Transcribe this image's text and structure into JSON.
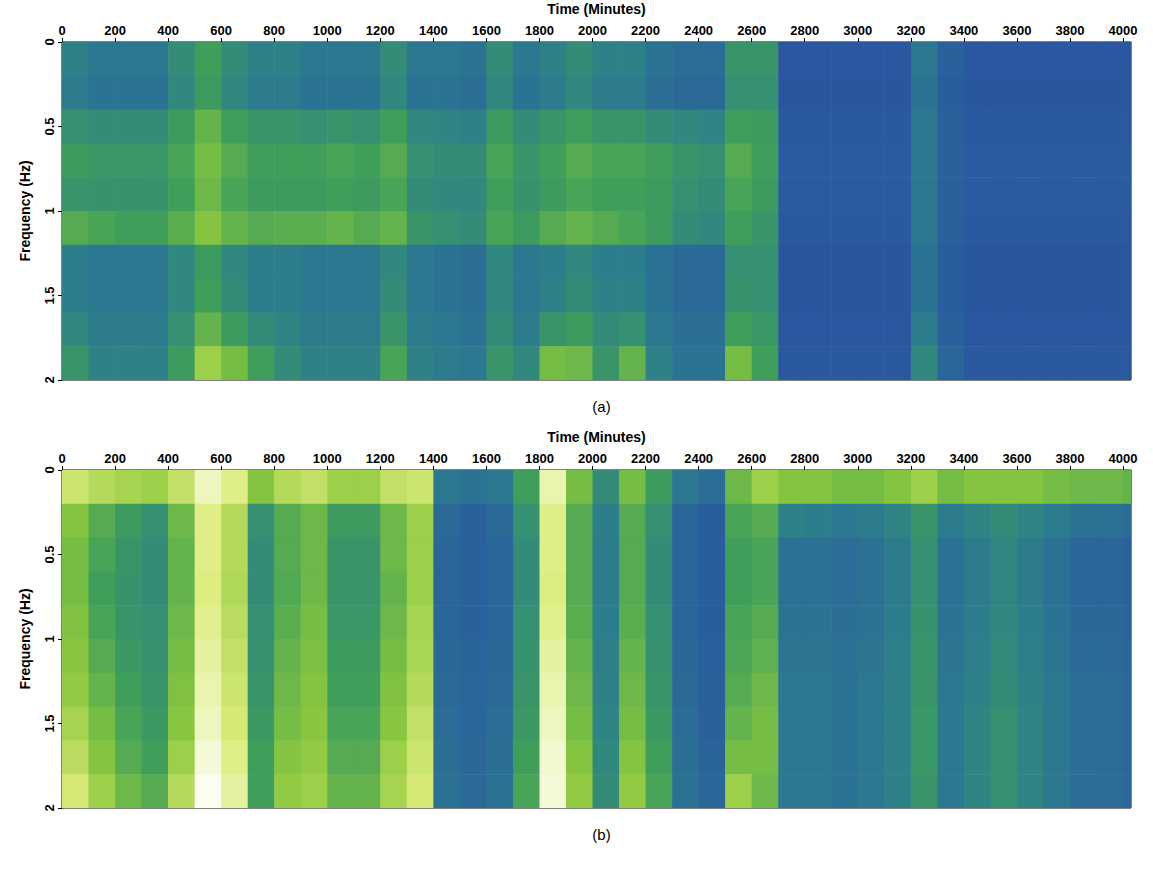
{
  "chart_data": [
    {
      "type": "heatmap",
      "title": "(a)",
      "x_label": "Time (Minutes)",
      "y_label": "Frequency (Hz)",
      "xlim": [
        0,
        4030
      ],
      "ylim": [
        2,
        0
      ],
      "xticks": [
        0,
        200,
        400,
        600,
        800,
        1000,
        1200,
        1400,
        1600,
        1800,
        2000,
        2200,
        2400,
        2600,
        2800,
        3000,
        3200,
        3400,
        3600,
        3800,
        4000
      ],
      "yticks": [
        0,
        0.5,
        1,
        1.5,
        2
      ],
      "colormap": [
        "#2a3f96",
        "#2a5aa0",
        "#2c7f8c",
        "#3f9f5a",
        "#8cc83e",
        "#dcec7a",
        "#ffffff"
      ],
      "color_range": [
        0,
        1
      ],
      "time_bins": [
        0,
        100,
        200,
        300,
        400,
        500,
        600,
        700,
        800,
        900,
        1000,
        1100,
        1200,
        1300,
        1400,
        1500,
        1600,
        1700,
        1800,
        1900,
        2000,
        2100,
        2200,
        2300,
        2400,
        2500,
        2600,
        2700,
        2800,
        2900,
        3000,
        3100,
        3200,
        3300,
        3400,
        3500,
        3600,
        3700,
        3800,
        3900,
        4000,
        4030
      ],
      "frequency_bins": [
        0,
        0.2,
        0.4,
        0.6,
        0.8,
        1,
        1.2,
        1.4,
        1.6,
        1.8,
        2
      ],
      "cells": [
        [
          0.35,
          0.3,
          0.3,
          0.3,
          0.4,
          0.5,
          0.4,
          0.35,
          0.35,
          0.3,
          0.3,
          0.3,
          0.4,
          0.3,
          0.3,
          0.28,
          0.4,
          0.3,
          0.35,
          0.4,
          0.35,
          0.35,
          0.28,
          0.25,
          0.25,
          0.45,
          0.45,
          0.15,
          0.15,
          0.15,
          0.15,
          0.15,
          0.3,
          0.2,
          0.15,
          0.15,
          0.15,
          0.15,
          0.15,
          0.15,
          0.15
        ],
        [
          0.32,
          0.28,
          0.28,
          0.28,
          0.38,
          0.48,
          0.38,
          0.32,
          0.32,
          0.28,
          0.28,
          0.28,
          0.38,
          0.28,
          0.28,
          0.26,
          0.38,
          0.28,
          0.32,
          0.38,
          0.32,
          0.32,
          0.26,
          0.24,
          0.24,
          0.42,
          0.42,
          0.14,
          0.14,
          0.14,
          0.14,
          0.14,
          0.28,
          0.18,
          0.14,
          0.14,
          0.14,
          0.14,
          0.14,
          0.14,
          0.14
        ],
        [
          0.42,
          0.4,
          0.4,
          0.4,
          0.48,
          0.58,
          0.5,
          0.45,
          0.45,
          0.42,
          0.45,
          0.42,
          0.5,
          0.38,
          0.36,
          0.35,
          0.48,
          0.4,
          0.45,
          0.5,
          0.45,
          0.45,
          0.4,
          0.38,
          0.36,
          0.5,
          0.48,
          0.16,
          0.16,
          0.16,
          0.16,
          0.16,
          0.3,
          0.2,
          0.16,
          0.16,
          0.16,
          0.16,
          0.16,
          0.16,
          0.16
        ],
        [
          0.48,
          0.46,
          0.46,
          0.46,
          0.52,
          0.62,
          0.55,
          0.5,
          0.5,
          0.5,
          0.52,
          0.5,
          0.55,
          0.42,
          0.4,
          0.4,
          0.52,
          0.45,
          0.5,
          0.55,
          0.52,
          0.52,
          0.5,
          0.45,
          0.42,
          0.55,
          0.5,
          0.17,
          0.17,
          0.17,
          0.17,
          0.17,
          0.3,
          0.2,
          0.17,
          0.17,
          0.17,
          0.17,
          0.17,
          0.17,
          0.17
        ],
        [
          0.45,
          0.44,
          0.44,
          0.44,
          0.5,
          0.6,
          0.52,
          0.48,
          0.48,
          0.48,
          0.5,
          0.48,
          0.52,
          0.4,
          0.38,
          0.38,
          0.5,
          0.44,
          0.48,
          0.52,
          0.5,
          0.5,
          0.48,
          0.42,
          0.4,
          0.52,
          0.48,
          0.17,
          0.17,
          0.17,
          0.17,
          0.17,
          0.3,
          0.2,
          0.17,
          0.17,
          0.17,
          0.17,
          0.17,
          0.17,
          0.17
        ],
        [
          0.55,
          0.52,
          0.5,
          0.5,
          0.56,
          0.65,
          0.58,
          0.55,
          0.56,
          0.56,
          0.58,
          0.55,
          0.58,
          0.45,
          0.42,
          0.4,
          0.52,
          0.48,
          0.55,
          0.58,
          0.55,
          0.52,
          0.48,
          0.4,
          0.38,
          0.5,
          0.45,
          0.16,
          0.16,
          0.16,
          0.16,
          0.16,
          0.3,
          0.2,
          0.16,
          0.16,
          0.16,
          0.16,
          0.16,
          0.16,
          0.16
        ],
        [
          0.33,
          0.3,
          0.3,
          0.3,
          0.38,
          0.48,
          0.38,
          0.33,
          0.33,
          0.3,
          0.3,
          0.3,
          0.38,
          0.3,
          0.28,
          0.26,
          0.38,
          0.3,
          0.33,
          0.38,
          0.33,
          0.33,
          0.27,
          0.24,
          0.24,
          0.42,
          0.42,
          0.14,
          0.14,
          0.14,
          0.14,
          0.14,
          0.28,
          0.18,
          0.14,
          0.14,
          0.14,
          0.14,
          0.14,
          0.14,
          0.14
        ],
        [
          0.33,
          0.3,
          0.3,
          0.3,
          0.38,
          0.5,
          0.4,
          0.33,
          0.33,
          0.3,
          0.3,
          0.3,
          0.4,
          0.3,
          0.28,
          0.26,
          0.38,
          0.3,
          0.35,
          0.4,
          0.35,
          0.35,
          0.28,
          0.24,
          0.24,
          0.44,
          0.42,
          0.14,
          0.14,
          0.14,
          0.14,
          0.14,
          0.28,
          0.18,
          0.14,
          0.14,
          0.14,
          0.14,
          0.14,
          0.14,
          0.14
        ],
        [
          0.38,
          0.32,
          0.32,
          0.32,
          0.42,
          0.58,
          0.48,
          0.4,
          0.36,
          0.32,
          0.32,
          0.32,
          0.45,
          0.32,
          0.3,
          0.28,
          0.4,
          0.32,
          0.45,
          0.48,
          0.4,
          0.42,
          0.3,
          0.26,
          0.26,
          0.5,
          0.46,
          0.15,
          0.15,
          0.15,
          0.15,
          0.15,
          0.32,
          0.2,
          0.15,
          0.15,
          0.15,
          0.15,
          0.15,
          0.15,
          0.15
        ],
        [
          0.45,
          0.35,
          0.35,
          0.35,
          0.48,
          0.7,
          0.62,
          0.5,
          0.4,
          0.35,
          0.35,
          0.35,
          0.52,
          0.35,
          0.32,
          0.3,
          0.45,
          0.38,
          0.62,
          0.6,
          0.45,
          0.58,
          0.35,
          0.28,
          0.28,
          0.62,
          0.5,
          0.16,
          0.16,
          0.16,
          0.16,
          0.16,
          0.38,
          0.22,
          0.16,
          0.16,
          0.16,
          0.16,
          0.16,
          0.16,
          0.16
        ]
      ]
    },
    {
      "type": "heatmap",
      "title": "(b)",
      "x_label": "Time (Minutes)",
      "y_label": "Frequency (Hz)",
      "xlim": [
        0,
        4030
      ],
      "ylim": [
        2,
        0
      ],
      "xticks": [
        0,
        200,
        400,
        600,
        800,
        1000,
        1200,
        1400,
        1600,
        1800,
        2000,
        2200,
        2400,
        2600,
        2800,
        3000,
        3200,
        3400,
        3600,
        3800,
        4000
      ],
      "yticks": [
        0,
        0.5,
        1,
        1.5,
        2
      ],
      "colormap": [
        "#2a3f96",
        "#2a5aa0",
        "#2c7f8c",
        "#3f9f5a",
        "#8cc83e",
        "#dcec7a",
        "#ffffff"
      ],
      "color_range": [
        0,
        1
      ],
      "time_bins": [
        0,
        100,
        200,
        300,
        400,
        500,
        600,
        700,
        800,
        900,
        1000,
        1100,
        1200,
        1300,
        1400,
        1500,
        1600,
        1700,
        1800,
        1900,
        2000,
        2100,
        2200,
        2300,
        2400,
        2500,
        2600,
        2700,
        2800,
        2900,
        3000,
        3100,
        3200,
        3300,
        3400,
        3500,
        3600,
        3700,
        3800,
        3900,
        4000,
        4030
      ],
      "frequency_bins": [
        0,
        0.2,
        0.4,
        0.6,
        0.8,
        1,
        1.2,
        1.4,
        1.6,
        1.8,
        2
      ],
      "cells": [
        [
          0.8,
          0.75,
          0.72,
          0.7,
          0.78,
          0.92,
          0.85,
          0.65,
          0.75,
          0.78,
          0.7,
          0.7,
          0.78,
          0.8,
          0.3,
          0.28,
          0.3,
          0.5,
          0.9,
          0.62,
          0.4,
          0.62,
          0.48,
          0.3,
          0.25,
          0.6,
          0.7,
          0.65,
          0.65,
          0.62,
          0.62,
          0.65,
          0.7,
          0.62,
          0.65,
          0.65,
          0.65,
          0.62,
          0.6,
          0.6,
          0.58
        ],
        [
          0.65,
          0.55,
          0.48,
          0.42,
          0.6,
          0.85,
          0.75,
          0.42,
          0.55,
          0.6,
          0.48,
          0.48,
          0.6,
          0.7,
          0.24,
          0.2,
          0.24,
          0.42,
          0.85,
          0.55,
          0.33,
          0.55,
          0.42,
          0.22,
          0.18,
          0.52,
          0.55,
          0.35,
          0.33,
          0.3,
          0.32,
          0.36,
          0.45,
          0.32,
          0.36,
          0.4,
          0.36,
          0.32,
          0.28,
          0.27,
          0.25
        ],
        [
          0.62,
          0.52,
          0.45,
          0.4,
          0.58,
          0.85,
          0.75,
          0.4,
          0.55,
          0.6,
          0.45,
          0.45,
          0.6,
          0.7,
          0.22,
          0.2,
          0.22,
          0.4,
          0.85,
          0.55,
          0.32,
          0.55,
          0.4,
          0.22,
          0.18,
          0.5,
          0.52,
          0.27,
          0.27,
          0.25,
          0.27,
          0.32,
          0.42,
          0.27,
          0.32,
          0.37,
          0.32,
          0.27,
          0.22,
          0.22,
          0.2
        ],
        [
          0.62,
          0.5,
          0.44,
          0.4,
          0.58,
          0.84,
          0.74,
          0.4,
          0.54,
          0.6,
          0.45,
          0.45,
          0.58,
          0.7,
          0.22,
          0.2,
          0.22,
          0.4,
          0.84,
          0.55,
          0.32,
          0.55,
          0.4,
          0.22,
          0.18,
          0.5,
          0.52,
          0.27,
          0.27,
          0.25,
          0.27,
          0.32,
          0.42,
          0.27,
          0.32,
          0.37,
          0.32,
          0.27,
          0.22,
          0.22,
          0.2
        ],
        [
          0.64,
          0.52,
          0.45,
          0.42,
          0.6,
          0.86,
          0.76,
          0.42,
          0.56,
          0.62,
          0.46,
          0.46,
          0.6,
          0.72,
          0.22,
          0.2,
          0.22,
          0.42,
          0.86,
          0.56,
          0.33,
          0.56,
          0.42,
          0.22,
          0.18,
          0.52,
          0.55,
          0.28,
          0.28,
          0.26,
          0.28,
          0.33,
          0.44,
          0.28,
          0.33,
          0.38,
          0.33,
          0.28,
          0.23,
          0.23,
          0.21
        ],
        [
          0.66,
          0.55,
          0.47,
          0.43,
          0.62,
          0.88,
          0.78,
          0.43,
          0.58,
          0.63,
          0.48,
          0.48,
          0.62,
          0.73,
          0.23,
          0.21,
          0.23,
          0.43,
          0.88,
          0.58,
          0.34,
          0.58,
          0.43,
          0.23,
          0.19,
          0.53,
          0.57,
          0.29,
          0.29,
          0.27,
          0.29,
          0.34,
          0.45,
          0.29,
          0.34,
          0.39,
          0.34,
          0.29,
          0.24,
          0.24,
          0.22
        ],
        [
          0.68,
          0.58,
          0.5,
          0.45,
          0.64,
          0.9,
          0.8,
          0.45,
          0.6,
          0.65,
          0.5,
          0.5,
          0.64,
          0.75,
          0.24,
          0.22,
          0.24,
          0.45,
          0.9,
          0.6,
          0.35,
          0.6,
          0.45,
          0.24,
          0.2,
          0.55,
          0.6,
          0.3,
          0.3,
          0.28,
          0.3,
          0.35,
          0.45,
          0.3,
          0.35,
          0.4,
          0.35,
          0.3,
          0.25,
          0.25,
          0.22
        ],
        [
          0.72,
          0.62,
          0.52,
          0.47,
          0.66,
          0.92,
          0.82,
          0.47,
          0.62,
          0.66,
          0.52,
          0.52,
          0.66,
          0.78,
          0.25,
          0.22,
          0.25,
          0.47,
          0.92,
          0.62,
          0.36,
          0.62,
          0.47,
          0.25,
          0.2,
          0.58,
          0.62,
          0.3,
          0.3,
          0.28,
          0.3,
          0.35,
          0.46,
          0.3,
          0.36,
          0.42,
          0.36,
          0.3,
          0.25,
          0.25,
          0.22
        ],
        [
          0.76,
          0.65,
          0.55,
          0.5,
          0.7,
          0.95,
          0.85,
          0.5,
          0.65,
          0.68,
          0.55,
          0.55,
          0.7,
          0.8,
          0.26,
          0.23,
          0.26,
          0.5,
          0.94,
          0.65,
          0.38,
          0.65,
          0.5,
          0.26,
          0.21,
          0.62,
          0.62,
          0.3,
          0.3,
          0.28,
          0.3,
          0.35,
          0.46,
          0.3,
          0.36,
          0.42,
          0.36,
          0.3,
          0.25,
          0.25,
          0.22
        ],
        [
          0.82,
          0.7,
          0.6,
          0.55,
          0.75,
          0.98,
          0.88,
          0.5,
          0.68,
          0.7,
          0.58,
          0.58,
          0.72,
          0.82,
          0.27,
          0.24,
          0.27,
          0.52,
          0.95,
          0.68,
          0.4,
          0.68,
          0.52,
          0.27,
          0.22,
          0.7,
          0.6,
          0.3,
          0.3,
          0.28,
          0.3,
          0.35,
          0.45,
          0.3,
          0.36,
          0.42,
          0.36,
          0.3,
          0.25,
          0.25,
          0.22
        ]
      ]
    }
  ]
}
